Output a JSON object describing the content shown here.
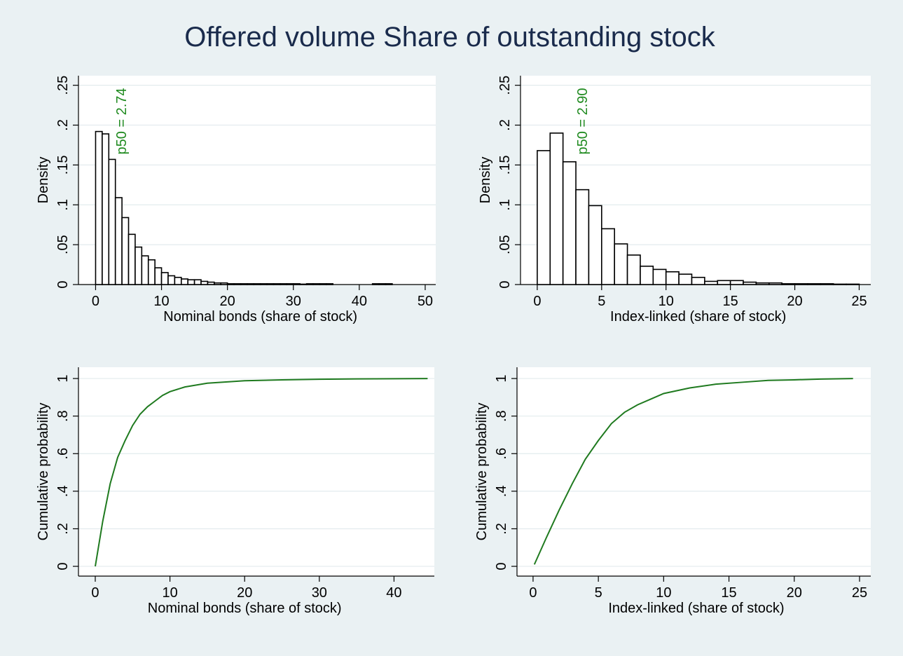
{
  "title": "Offered volume Share of outstanding stock",
  "chart_data": [
    {
      "type": "histogram",
      "xlabel": "Nominal bonds (share of stock)",
      "ylabel": "Density",
      "annotation": "p50 = 2.74",
      "color": "#ffffff",
      "edgecolor": "#000000",
      "annotation_color": "#1f8a1f",
      "grid": true,
      "bins": [
        0,
        1,
        2,
        3,
        4,
        5,
        6,
        7,
        8,
        9,
        10,
        11,
        12,
        13,
        14,
        15,
        16,
        17,
        18,
        19,
        20,
        21,
        22,
        23,
        24,
        25,
        26,
        27,
        28,
        29,
        30,
        31,
        32,
        33,
        34,
        35,
        36,
        37,
        38,
        39,
        40,
        41,
        42,
        43,
        44,
        45
      ],
      "values": [
        0.192,
        0.189,
        0.157,
        0.109,
        0.084,
        0.063,
        0.047,
        0.036,
        0.031,
        0.021,
        0.015,
        0.011,
        0.009,
        0.007,
        0.006,
        0.006,
        0.004,
        0.003,
        0.002,
        0.002,
        0.001,
        0.001,
        0.001,
        0.001,
        0.001,
        0.001,
        0.001,
        0.001,
        0.001,
        0.001,
        0.001,
        0.0005,
        0.001,
        0.001,
        0.001,
        0.001,
        0,
        0,
        0,
        0,
        0,
        0,
        0.001,
        0.001,
        0.001
      ],
      "xlim": [
        -2.6,
        51.6
      ],
      "ylim": [
        0,
        0.262
      ],
      "xticks": [
        0,
        10,
        20,
        30,
        40,
        50
      ],
      "yticks": [
        0,
        {
          "value": 0.05,
          "label": ".05"
        },
        {
          "value": 0.1,
          "label": ".1"
        },
        {
          "value": 0.15,
          "label": ".15"
        },
        {
          "value": 0.2,
          "label": ".2"
        },
        {
          "value": 0.25,
          "label": ".25"
        }
      ]
    },
    {
      "type": "histogram",
      "xlabel": "Index-linked (share of stock)",
      "ylabel": "Density",
      "annotation": "p50 = 2.90",
      "color": "#ffffff",
      "edgecolor": "#000000",
      "annotation_color": "#1f8a1f",
      "grid": true,
      "bins": [
        0,
        1,
        2,
        3,
        4,
        5,
        6,
        7,
        8,
        9,
        10,
        11,
        12,
        13,
        14,
        15,
        16,
        17,
        18,
        19,
        20,
        21,
        22,
        23,
        24,
        25
      ],
      "values": [
        0.168,
        0.19,
        0.154,
        0.119,
        0.099,
        0.07,
        0.051,
        0.037,
        0.023,
        0.019,
        0.016,
        0.013,
        0.009,
        0.004,
        0.005,
        0.005,
        0.003,
        0.002,
        0.002,
        0.001,
        0.001,
        0.001,
        0.001,
        0.0005,
        0.0005
      ],
      "xlim": [
        -1.3,
        25.9
      ],
      "ylim": [
        0,
        0.262
      ],
      "xticks": [
        0,
        5,
        10,
        15,
        20,
        25
      ],
      "yticks": [
        0,
        {
          "value": 0.05,
          "label": ".05"
        },
        {
          "value": 0.1,
          "label": ".1"
        },
        {
          "value": 0.15,
          "label": ".15"
        },
        {
          "value": 0.2,
          "label": ".2"
        },
        {
          "value": 0.25,
          "label": ".25"
        }
      ]
    },
    {
      "type": "line",
      "xlabel": "Nominal bonds (share of stock)",
      "ylabel": "Cumulative probability",
      "color": "#1f7a1f",
      "grid": true,
      "x": [
        0,
        1,
        2,
        3,
        4,
        5,
        6,
        7,
        8,
        9,
        10,
        12,
        15,
        20,
        25,
        30,
        35,
        40,
        44.5
      ],
      "values": [
        0,
        0.24,
        0.44,
        0.58,
        0.67,
        0.75,
        0.81,
        0.85,
        0.88,
        0.91,
        0.93,
        0.955,
        0.975,
        0.988,
        0.993,
        0.996,
        0.998,
        0.999,
        1.0
      ],
      "xlim": [
        -2.25,
        45.4
      ],
      "ylim": [
        -0.052,
        1.06
      ],
      "xticks": [
        0,
        10,
        20,
        30,
        40
      ],
      "yticks": [
        0,
        {
          "value": 0.2,
          "label": ".2"
        },
        {
          "value": 0.4,
          "label": ".4"
        },
        {
          "value": 0.6,
          "label": ".6"
        },
        {
          "value": 0.8,
          "label": ".8"
        },
        1
      ]
    },
    {
      "type": "line",
      "xlabel": "Index-linked (share of stock)",
      "ylabel": "Cumulative probability",
      "color": "#1f7a1f",
      "grid": true,
      "x": [
        0.1,
        1,
        2,
        3,
        4,
        5,
        6,
        7,
        8,
        9,
        10,
        12,
        14,
        16,
        18,
        20,
        22,
        24.5
      ],
      "values": [
        0.01,
        0.15,
        0.3,
        0.44,
        0.57,
        0.67,
        0.76,
        0.82,
        0.86,
        0.89,
        0.92,
        0.95,
        0.97,
        0.98,
        0.99,
        0.993,
        0.997,
        1.0
      ],
      "xlim": [
        -1.23,
        25.86
      ],
      "ylim": [
        -0.052,
        1.06
      ],
      "xticks": [
        0,
        5,
        10,
        15,
        20,
        25
      ],
      "yticks": [
        0,
        {
          "value": 0.2,
          "label": ".2"
        },
        {
          "value": 0.4,
          "label": ".4"
        },
        {
          "value": 0.6,
          "label": ".6"
        },
        {
          "value": 0.8,
          "label": ".8"
        },
        1
      ]
    }
  ]
}
